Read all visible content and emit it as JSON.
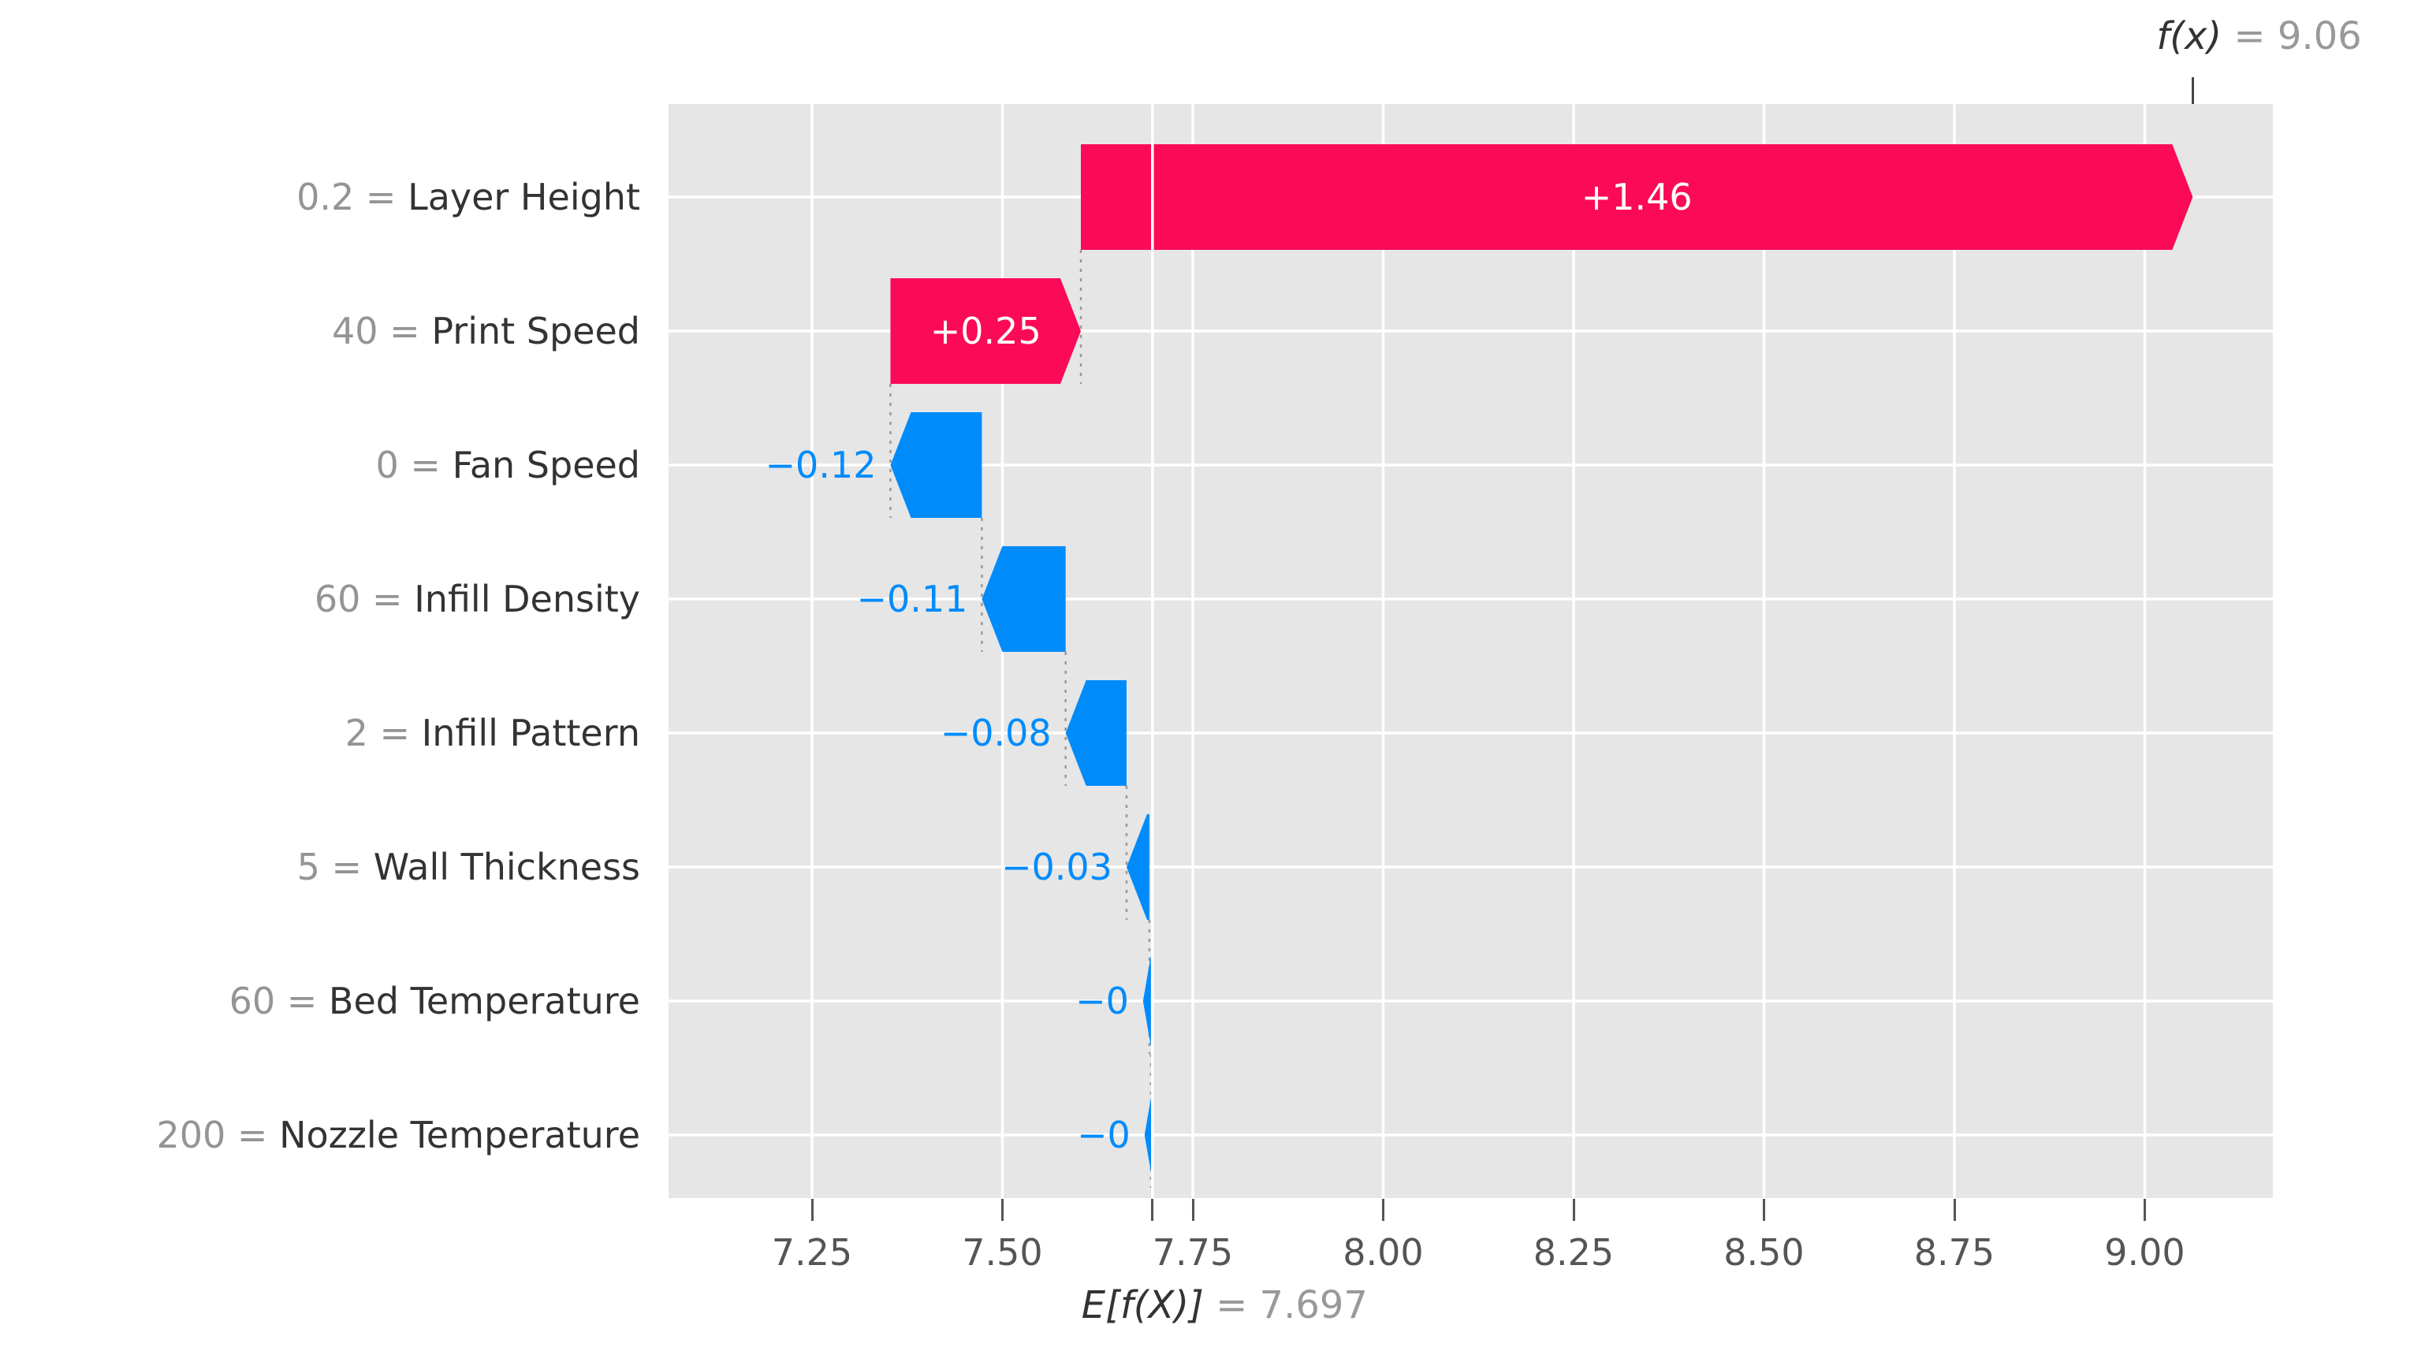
{
  "chart_data": {
    "type": "bar",
    "subtype": "shap-waterfall",
    "fx": {
      "text": "f(x)",
      "eq": " = 9.06",
      "value": 9.063
    },
    "base": {
      "text": "E[f(X)]",
      "eq": " = 7.697",
      "value": 7.697
    },
    "separator": " = ",
    "features": [
      {
        "value": "0.2",
        "name": "Layer Height",
        "contribution": "+1.46",
        "direction": "positive",
        "from": 7.603,
        "to": 9.063,
        "label_pos": "inside"
      },
      {
        "value": "40",
        "name": "Print Speed",
        "contribution": "+0.25",
        "direction": "positive",
        "from": 7.353,
        "to": 7.603,
        "label_pos": "inside"
      },
      {
        "value": "0",
        "name": "Fan Speed",
        "contribution": "−0.12",
        "direction": "negative",
        "from": 7.473,
        "to": 7.353,
        "label_pos": "outside"
      },
      {
        "value": "60",
        "name": "Infill Density",
        "contribution": "−0.11",
        "direction": "negative",
        "from": 7.583,
        "to": 7.473,
        "label_pos": "outside"
      },
      {
        "value": "2",
        "name": "Infill Pattern",
        "contribution": "−0.08",
        "direction": "negative",
        "from": 7.663,
        "to": 7.583,
        "label_pos": "outside"
      },
      {
        "value": "5",
        "name": "Wall Thickness",
        "contribution": "−0.03",
        "direction": "negative",
        "from": 7.693,
        "to": 7.663,
        "label_pos": "outside"
      },
      {
        "value": "60",
        "name": "Bed Temperature",
        "contribution": "−0",
        "direction": "negative",
        "from": 7.695,
        "to": 7.693,
        "label_pos": "outside"
      },
      {
        "value": "200",
        "name": "Nozzle Temperature",
        "contribution": "−0",
        "direction": "negative",
        "from": 7.697,
        "to": 7.695,
        "label_pos": "outside"
      }
    ],
    "xaxis": {
      "tick_labels": [
        "7.25",
        "7.50",
        "7.75",
        "8.00",
        "8.25",
        "8.50",
        "8.75",
        "9.00"
      ],
      "tick_values": [
        7.25,
        7.5,
        7.75,
        8.0,
        8.25,
        8.5,
        8.75,
        9.0
      ],
      "domain": [
        7.062,
        9.168
      ]
    },
    "colors": {
      "positive": "#fb0a57",
      "negative": "#008bfb",
      "plot_bg": "#e6e6e6",
      "grid": "#ffffff",
      "connector": "#999999",
      "expected_line": "#ffffff",
      "feature_value_text": "#949494",
      "feature_name_text": "#333333",
      "tick_text": "#555555",
      "annotation_dark": "#333333",
      "annotation_gray": "#999999",
      "bar_label_inside": "#ffffff"
    }
  }
}
